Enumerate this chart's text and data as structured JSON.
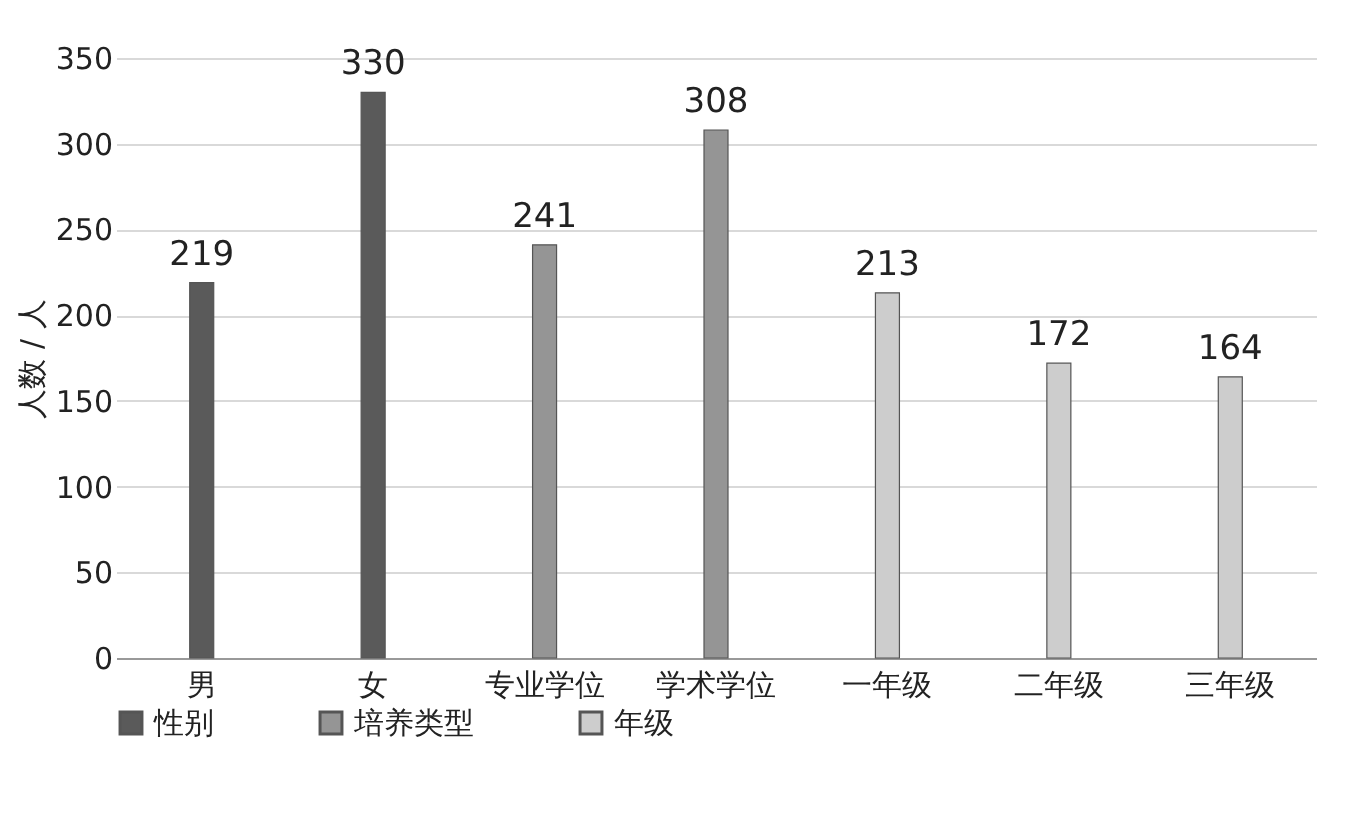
{
  "chart_data": {
    "type": "bar",
    "ylabel": "人数 / 人",
    "categories": [
      "男",
      "女",
      "专业学位",
      "学术学位",
      "一年级",
      "二年级",
      "三年级"
    ],
    "series": [
      {
        "name": "性别",
        "color": "#5a5a5a",
        "values": [
          219,
          330,
          null,
          null,
          null,
          null,
          null
        ]
      },
      {
        "name": "培养类型",
        "color": "#959595",
        "values": [
          null,
          null,
          241,
          308,
          null,
          null,
          null
        ]
      },
      {
        "name": "年级",
        "color": "#cdcdcd",
        "values": [
          null,
          null,
          null,
          null,
          213,
          172,
          164
        ]
      }
    ],
    "ylim": [
      0,
      350
    ],
    "yticks": [
      0,
      50,
      100,
      150,
      200,
      250,
      300,
      350
    ],
    "grid": "y",
    "legend": "bottom",
    "data_labels": true
  }
}
